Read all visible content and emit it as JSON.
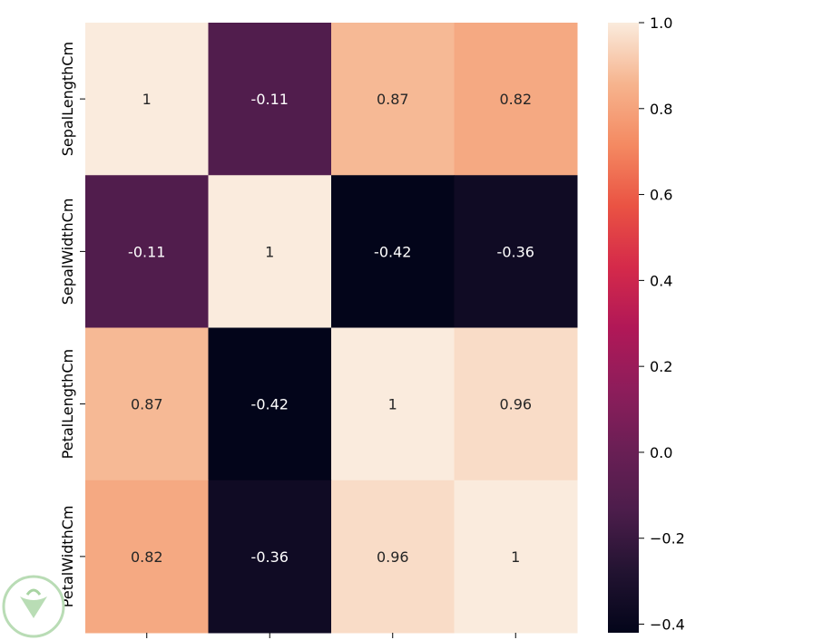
{
  "chart_data": {
    "type": "heatmap",
    "title": "",
    "xlabel": "",
    "ylabel": "",
    "row_labels": [
      "SepalLengthCm",
      "SepalWidthCm",
      "PetalLengthCm",
      "PetalWidthCm"
    ],
    "column_labels": [],
    "values": [
      [
        1,
        -0.11,
        0.87,
        0.82
      ],
      [
        -0.11,
        1,
        -0.42,
        -0.36
      ],
      [
        0.87,
        -0.42,
        1,
        0.96
      ],
      [
        0.82,
        -0.36,
        0.96,
        1
      ]
    ],
    "cell_labels": [
      [
        "1",
        "-0.11",
        "0.87",
        "0.82"
      ],
      [
        "-0.11",
        "1",
        "-0.42",
        "-0.36"
      ],
      [
        "0.87",
        "-0.42",
        "1",
        "0.96"
      ],
      [
        "0.82",
        "-0.36",
        "0.96",
        "1"
      ]
    ],
    "colormap": "rocket",
    "colorbar": {
      "range": [
        -0.42,
        1.0
      ],
      "ticks": [
        1.0,
        0.8,
        0.6,
        0.4,
        0.2,
        0.0,
        -0.2,
        -0.4
      ],
      "tick_labels": [
        "1.0",
        "0.8",
        "0.6",
        "0.4",
        "0.2",
        "0.0",
        "−0.2",
        "−0.4"
      ]
    },
    "grid": false,
    "legend": "colorbar-right"
  }
}
